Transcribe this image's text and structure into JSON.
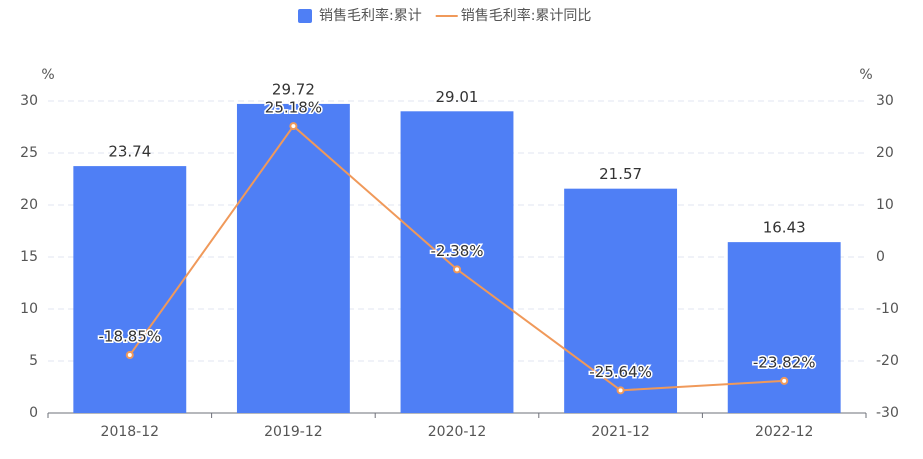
{
  "chart_data": {
    "type": "bar",
    "categories": [
      "2018-12",
      "2019-12",
      "2020-12",
      "2021-12",
      "2022-12"
    ],
    "series": [
      {
        "name": "销售毛利率:累计",
        "color": "#4f7ff5",
        "values": [
          23.74,
          29.72,
          29.01,
          21.57,
          16.43
        ]
      },
      {
        "name": "销售毛利率:累计同比",
        "type": "line",
        "axis": "y2",
        "color": "#f0995a",
        "values": [
          -18.85,
          25.18,
          -2.38,
          -25.64,
          -23.82
        ],
        "value_labels": [
          "-18.85%",
          "25.18%",
          "-2.38%",
          "-25.64%",
          "-23.82%"
        ]
      }
    ],
    "y_unit": "%",
    "y2_unit": "%",
    "ylim": [
      0,
      30
    ],
    "yticks": [
      0,
      5,
      10,
      15,
      20,
      25,
      30
    ],
    "y2lim": [
      -30,
      30
    ],
    "y2ticks": [
      -30,
      -20,
      -10,
      0,
      10,
      20,
      30
    ],
    "grid": true,
    "legend": "top"
  }
}
